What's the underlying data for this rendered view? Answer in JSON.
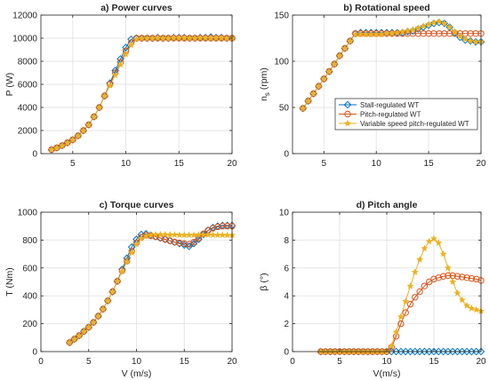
{
  "colors": {
    "stall": "#0072BD",
    "pitch": "#D95319",
    "variable": "#EDB120",
    "axis": "#262626",
    "grid": "#e6e6e6"
  },
  "chart_data": [
    {
      "id": "a",
      "type": "line",
      "title": "a) Power curves",
      "xlabel": "",
      "ylabel": "P (W)",
      "xlim": [
        2,
        20
      ],
      "ylim": [
        0,
        12000
      ],
      "xticks": [
        5,
        10,
        15,
        20
      ],
      "yticks": [
        0,
        2000,
        4000,
        6000,
        8000,
        10000,
        12000
      ],
      "ytick_labels": [
        "0",
        "2000",
        "4000",
        "6000",
        "8000",
        "10000",
        "12000"
      ],
      "grid": true,
      "x": [
        3,
        3.5,
        4,
        4.5,
        5,
        5.5,
        6,
        6.5,
        7,
        7.5,
        8,
        8.5,
        9,
        9.5,
        10,
        10.5,
        11,
        11.5,
        12,
        12.5,
        13,
        13.5,
        14,
        14.5,
        15,
        15.5,
        16,
        16.5,
        17,
        17.5,
        18,
        18.5,
        19,
        19.5,
        20
      ],
      "series": [
        {
          "name": "Stall-regulated WT",
          "key": "stall",
          "marker": "diamond",
          "values": [
            350,
            500,
            700,
            950,
            1200,
            1550,
            2000,
            2500,
            3200,
            4000,
            5000,
            6100,
            7200,
            8200,
            9200,
            9900,
            10000,
            10000,
            10000,
            10000,
            10050,
            10000,
            10000,
            10050,
            10050,
            10050,
            10000,
            10000,
            10050,
            10050,
            10100,
            10050,
            10050,
            10000,
            10000
          ]
        },
        {
          "name": "Pitch-regulated WT",
          "key": "pitch",
          "marker": "circle",
          "values": [
            350,
            500,
            700,
            950,
            1200,
            1550,
            2000,
            2500,
            3200,
            4000,
            5000,
            6000,
            7000,
            7900,
            8900,
            9600,
            10000,
            10000,
            10000,
            10000,
            10000,
            10000,
            10000,
            10000,
            10000,
            10000,
            10000,
            10000,
            10000,
            10000,
            10000,
            10000,
            10000,
            10000,
            10000
          ]
        },
        {
          "name": "Variable speed pitch-regulated WT",
          "key": "variable",
          "marker": "star",
          "values": [
            350,
            500,
            700,
            950,
            1200,
            1550,
            2000,
            2500,
            3200,
            4000,
            5000,
            5900,
            6800,
            7700,
            8600,
            9400,
            9900,
            10000,
            10000,
            10000,
            10000,
            10000,
            10000,
            10000,
            10000,
            10000,
            10000,
            10000,
            10000,
            10000,
            10000,
            10000,
            10000,
            10000,
            10000
          ]
        }
      ]
    },
    {
      "id": "b",
      "type": "line",
      "title": "b) Rotational speed",
      "xlabel": "",
      "ylabel": "n",
      "ylabel_sub": "s",
      "ylabel_unit": " (rpm)",
      "xlim": [
        2,
        20
      ],
      "ylim": [
        0,
        150
      ],
      "xticks": [
        5,
        10,
        15,
        20
      ],
      "yticks": [
        0,
        50,
        100,
        150
      ],
      "ytick_labels": [
        "0",
        "50",
        "100",
        "150"
      ],
      "grid": true,
      "legend": "center-right",
      "x": [
        3,
        3.5,
        4,
        4.5,
        5,
        5.5,
        6,
        6.5,
        7,
        7.5,
        8,
        8.5,
        9,
        9.5,
        10,
        10.5,
        11,
        11.5,
        12,
        12.5,
        13,
        13.5,
        14,
        14.5,
        15,
        15.5,
        16,
        16.5,
        17,
        17.5,
        18,
        18.5,
        19,
        19.5,
        20
      ],
      "series": [
        {
          "name": "Stall-regulated WT",
          "key": "stall",
          "marker": "diamond",
          "values": [
            49,
            57,
            65,
            73,
            81,
            89,
            97,
            106,
            114,
            122,
            130,
            131,
            131,
            131,
            131,
            131,
            131,
            131,
            131,
            131,
            132,
            133,
            135,
            137,
            139,
            141,
            142,
            141,
            137,
            131,
            126,
            123,
            122,
            121,
            121
          ]
        },
        {
          "name": "Pitch-regulated WT",
          "key": "pitch",
          "marker": "circle",
          "values": [
            49,
            57,
            65,
            73,
            81,
            89,
            97,
            106,
            114,
            122,
            130,
            130,
            130,
            130,
            130,
            130,
            130,
            130,
            130,
            130,
            130,
            130,
            130,
            130,
            130,
            130,
            130,
            130,
            130,
            130,
            130,
            130,
            130,
            130,
            130
          ]
        },
        {
          "name": "Variable speed pitch-regulated WT",
          "key": "variable",
          "marker": "star",
          "values": [
            49,
            57,
            65,
            73,
            81,
            89,
            97,
            106,
            114,
            122,
            129,
            129,
            129,
            129,
            129,
            129,
            130,
            130,
            131,
            132,
            133,
            134,
            136,
            138,
            140,
            142,
            143,
            141,
            137,
            132,
            127,
            124,
            122,
            121,
            121
          ]
        }
      ]
    },
    {
      "id": "c",
      "type": "line",
      "title": "c) Torque curves",
      "xlabel": "V (m/s)",
      "ylabel": "T (Nm)",
      "xlim": [
        0,
        20
      ],
      "ylim": [
        0,
        1000
      ],
      "xticks": [
        0,
        5,
        10,
        15,
        20
      ],
      "yticks": [
        0,
        200,
        400,
        600,
        800,
        1000
      ],
      "ytick_labels": [
        "0",
        "200",
        "400",
        "600",
        "800",
        "1000"
      ],
      "grid": true,
      "x": [
        3,
        3.5,
        4,
        4.5,
        5,
        5.5,
        6,
        6.5,
        7,
        7.5,
        8,
        8.5,
        9,
        9.5,
        10,
        10.5,
        11,
        11.5,
        12,
        12.5,
        13,
        13.5,
        14,
        14.5,
        15,
        15.5,
        16,
        16.5,
        17,
        17.5,
        18,
        18.5,
        19,
        19.5,
        20
      ],
      "series": [
        {
          "name": "Stall-regulated WT",
          "key": "stall",
          "marker": "diamond",
          "values": [
            65,
            90,
            115,
            145,
            175,
            210,
            255,
            305,
            365,
            430,
            505,
            590,
            670,
            750,
            805,
            840,
            845,
            835,
            825,
            815,
            805,
            795,
            785,
            775,
            765,
            755,
            775,
            805,
            840,
            870,
            890,
            900,
            905,
            905,
            905
          ]
        },
        {
          "name": "Pitch-regulated WT",
          "key": "pitch",
          "marker": "circle",
          "values": [
            65,
            90,
            115,
            145,
            175,
            210,
            255,
            305,
            365,
            430,
            505,
            580,
            650,
            720,
            780,
            820,
            835,
            830,
            825,
            815,
            805,
            795,
            785,
            780,
            775,
            770,
            785,
            815,
            845,
            870,
            885,
            895,
            900,
            900,
            900
          ]
        },
        {
          "name": "Variable speed pitch-regulated WT",
          "key": "variable",
          "marker": "star",
          "values": [
            65,
            90,
            115,
            145,
            175,
            210,
            255,
            305,
            365,
            430,
            505,
            575,
            645,
            710,
            770,
            810,
            830,
            835,
            840,
            840,
            840,
            838,
            838,
            836,
            836,
            836,
            836,
            838,
            838,
            838,
            836,
            836,
            836,
            835,
            835
          ]
        }
      ]
    },
    {
      "id": "d",
      "type": "line",
      "title": "d) Pitch angle",
      "xlabel": "V(m/s)",
      "ylabel": "β (°)",
      "xlim": [
        0,
        20
      ],
      "ylim": [
        0,
        10
      ],
      "xticks": [
        0,
        5,
        10,
        15,
        20
      ],
      "yticks": [
        0,
        2,
        4,
        6,
        8,
        10
      ],
      "ytick_labels": [
        "0",
        "2",
        "4",
        "6",
        "8",
        "10"
      ],
      "grid": true,
      "x": [
        3,
        3.5,
        4,
        4.5,
        5,
        5.5,
        6,
        6.5,
        7,
        7.5,
        8,
        8.5,
        9,
        9.5,
        10,
        10.5,
        11,
        11.5,
        12,
        12.5,
        13,
        13.5,
        14,
        14.5,
        15,
        15.5,
        16,
        16.5,
        17,
        17.5,
        18,
        18.5,
        19,
        19.5,
        20
      ],
      "series": [
        {
          "name": "Stall-regulated WT",
          "key": "stall",
          "marker": "diamond",
          "values": [
            0,
            0,
            0,
            0,
            0,
            0,
            0,
            0,
            0,
            0,
            0,
            0,
            0,
            0,
            0,
            0,
            0,
            0,
            0,
            0,
            0,
            0,
            0,
            0,
            0,
            0,
            0,
            0,
            0,
            0,
            0,
            0,
            0,
            0,
            0
          ]
        },
        {
          "name": "Pitch-regulated WT",
          "key": "pitch",
          "marker": "circle",
          "values": [
            0,
            0,
            0,
            0,
            0,
            0,
            0,
            0,
            0,
            0,
            0,
            0,
            0,
            0,
            0,
            0.3,
            1.1,
            2.0,
            2.8,
            3.4,
            3.9,
            4.3,
            4.7,
            5.0,
            5.2,
            5.3,
            5.4,
            5.45,
            5.45,
            5.4,
            5.35,
            5.3,
            5.25,
            5.2,
            5.1
          ]
        },
        {
          "name": "Variable speed pitch-regulated WT",
          "key": "variable",
          "marker": "star",
          "values": [
            0,
            0,
            0,
            0,
            0,
            0,
            0,
            0,
            0,
            0,
            0,
            0,
            0,
            0,
            0,
            0.4,
            1.4,
            2.5,
            3.6,
            4.7,
            5.7,
            6.6,
            7.4,
            7.9,
            8.1,
            7.8,
            7.0,
            6.0,
            5.0,
            4.2,
            3.7,
            3.3,
            3.1,
            3.0,
            2.9
          ]
        }
      ]
    }
  ]
}
